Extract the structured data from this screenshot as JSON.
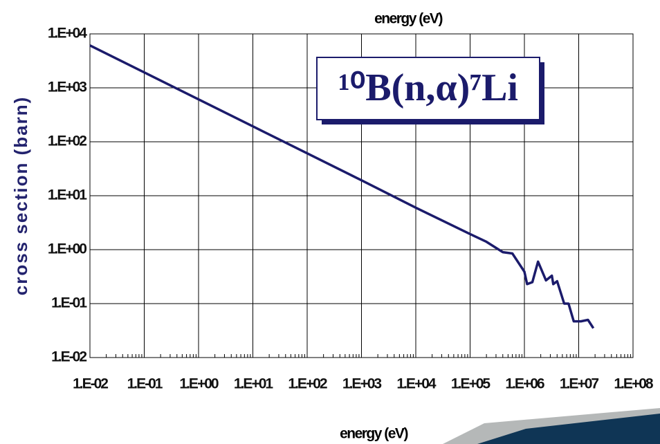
{
  "chart_data": {
    "type": "line",
    "title": "energy (eV)",
    "xlabel": "energy (eV)",
    "ylabel": "cross section (barn)",
    "annotation": "¹⁰B(n,α)⁷Li",
    "xscale": "log",
    "yscale": "log",
    "grid": true,
    "x": [
      0.01,
      0.1,
      1,
      10,
      100,
      1000,
      10000,
      100000,
      200000,
      400000,
      600000,
      1000000,
      1120000,
      1400000,
      1780000,
      2500000,
      3200000,
      3400000,
      4000000,
      5400000,
      6500000,
      8100000,
      11000000,
      14800000,
      18600000
    ],
    "series": [
      {
        "name": "10B(n,a)7Li",
        "color": "#1b1b6b",
        "values": [
          6100,
          1930,
          610,
          193,
          61,
          19.3,
          6.0,
          1.95,
          1.4,
          0.9,
          0.85,
          0.39,
          0.23,
          0.25,
          0.6,
          0.27,
          0.33,
          0.23,
          0.26,
          0.1,
          0.1,
          0.047,
          0.047,
          0.05,
          0.035
        ]
      }
    ],
    "xlim": [
      0.01,
      100000000
    ],
    "ylim": [
      0.01,
      10000
    ],
    "xticks": [
      {
        "value": 0.01,
        "label": "1.E-02"
      },
      {
        "value": 0.1,
        "label": "1.E-01"
      },
      {
        "value": 1,
        "label": "1.E+00"
      },
      {
        "value": 10,
        "label": "1.E+01"
      },
      {
        "value": 100,
        "label": "1.E+02"
      },
      {
        "value": 1000,
        "label": "1.E+03"
      },
      {
        "value": 10000,
        "label": "1.E+04"
      },
      {
        "value": 100000,
        "label": "1.E+05"
      },
      {
        "value": 1000000,
        "label": "1.E+06"
      },
      {
        "value": 10000000,
        "label": "1.E+07"
      },
      {
        "value": 100000000,
        "label": "1.E+08"
      }
    ],
    "yticks": [
      {
        "value": 0.01,
        "label": "1.E-02"
      },
      {
        "value": 0.1,
        "label": "1.E-01"
      },
      {
        "value": 1,
        "label": "1.E+00"
      },
      {
        "value": 10,
        "label": "1.E+01"
      },
      {
        "value": 100,
        "label": "1.E+02"
      },
      {
        "value": 1000,
        "label": "1.E+03"
      },
      {
        "value": 10000,
        "label": "1.E+04"
      }
    ]
  }
}
